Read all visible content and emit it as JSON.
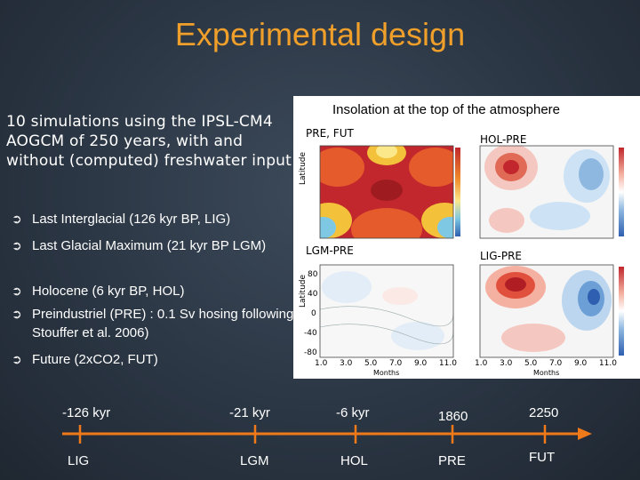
{
  "slide": {
    "title": "Experimental design",
    "intro": "10 simulations using the IPSL-CM4 AOGCM of 250 years, with and without (computed) freshwater input",
    "bullets": [
      "Last Interglacial (126 kyr BP, LIG)",
      "Last Glacial Maximum (21 kyr BP LGM)",
      "Holocene (6 kyr BP, HOL)",
      "Preindustriel (PRE) : 0.1 Sv hosing following Stouffer et al. 2006)",
      "Future (2xCO2, FUT)"
    ]
  },
  "figure": {
    "title": "Insolation at the top of the atmosphere",
    "panels": [
      "PRE, FUT",
      "HOL-PRE",
      "LGM-PRE",
      "LIG-PRE"
    ],
    "y_axis_label": "Latitude",
    "x_axis_label": "Months",
    "lat_ticks": [
      "80",
      "40",
      "0",
      "-40",
      "-80"
    ],
    "month_ticks": [
      "1.0",
      "3.0",
      "5.0",
      "7.0",
      "9.0",
      "11.0"
    ]
  },
  "timeline": {
    "top_labels": [
      "-126 kyr",
      "-21 kyr",
      "-6 kyr",
      "1860",
      "2250"
    ],
    "bottom_labels": [
      "LIG",
      "LGM",
      "HOL",
      "PRE",
      "FUT"
    ]
  },
  "colors": {
    "title": "#f0a02a",
    "background": "#2b3644",
    "text": "#ffffff",
    "timeline": "#f07a1a"
  }
}
